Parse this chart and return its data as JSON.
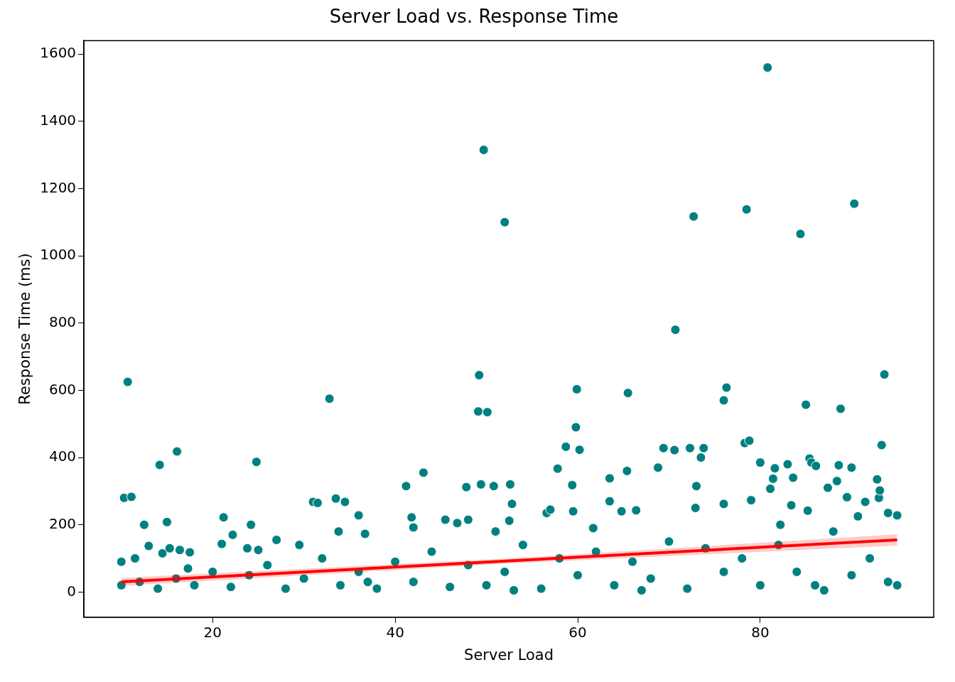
{
  "chart_data": {
    "type": "scatter",
    "title": "Server Load vs. Response Time",
    "xlabel": "Server Load",
    "ylabel": "Response Time (ms)",
    "xlim": [
      5.9,
      99
    ],
    "ylim": [
      -75,
      1640
    ],
    "xticks": [
      20,
      40,
      60,
      80
    ],
    "yticks": [
      0,
      200,
      400,
      600,
      800,
      1000,
      1200,
      1400,
      1600
    ],
    "grid": false,
    "legend": false,
    "marker": "circle",
    "series": [
      {
        "color": "#008080",
        "x": [
          10.3,
          10.7,
          11.1,
          10,
          11.5,
          12.5,
          13,
          14.2,
          14.5,
          15,
          15.3,
          16.1,
          16.4,
          17.5,
          17.3,
          21.2,
          21,
          22.2,
          23.8,
          24.2,
          24.8,
          25,
          27,
          29.5,
          31,
          31.5,
          32.8,
          33.5,
          34.5,
          33.8,
          36,
          36.7,
          41.2,
          41.8,
          42,
          43.1,
          45.5,
          46.8,
          47.8,
          48,
          49.2,
          49.1,
          49.4,
          49.7,
          50.1,
          50.8,
          51,
          52,
          52.6,
          52.8,
          52.5,
          56.6,
          57,
          57.8,
          58.7,
          59.4,
          59.8,
          59.9,
          60.2,
          59.5,
          61.7,
          63.5,
          63.5,
          64.8,
          65.4,
          65.5,
          66.4,
          68.8,
          69.4,
          70.6,
          70.7,
          72.3,
          72.7,
          72.9,
          73,
          73.5,
          73.8,
          76,
          76.3,
          76,
          78.3,
          78.5,
          78.8,
          79,
          80,
          80.8,
          81.1,
          81.4,
          81.6,
          82.2,
          83,
          83.4,
          83.6,
          84.4,
          85,
          85.2,
          85.4,
          85.6,
          86.1,
          87.4,
          88.4,
          88.6,
          88.8,
          89.5,
          90,
          90.3,
          90.7,
          91.5,
          92.8,
          93,
          93.1,
          93.3,
          93.6,
          94,
          95,
          10,
          12,
          14,
          16,
          18,
          20,
          22,
          24,
          26,
          28,
          30,
          32,
          34,
          36,
          38,
          40,
          42,
          44,
          46,
          48,
          50,
          52,
          54,
          56,
          58,
          60,
          62,
          64,
          66,
          68,
          70,
          72,
          74,
          76,
          78,
          80,
          82,
          84,
          86,
          88,
          90,
          92,
          94,
          95,
          37,
          53,
          67,
          87
        ],
        "values": [
          280,
          625,
          283,
          90,
          100,
          200,
          137,
          378,
          115,
          208,
          130,
          418,
          125,
          118,
          70,
          222,
          143,
          170,
          130,
          200,
          387,
          125,
          155,
          140,
          268,
          265,
          575,
          278,
          268,
          180,
          228,
          173,
          315,
          222,
          192,
          355,
          215,
          205,
          312,
          215,
          645,
          537,
          320,
          1315,
          535,
          315,
          180,
          1100,
          320,
          262,
          212,
          235,
          245,
          367,
          432,
          318,
          490,
          603,
          423,
          240,
          190,
          338,
          270,
          240,
          360,
          592,
          243,
          370,
          428,
          422,
          780,
          428,
          1117,
          250,
          315,
          400,
          428,
          570,
          608,
          262,
          443,
          1138,
          450,
          273,
          385,
          1560,
          307,
          337,
          368,
          200,
          380,
          258,
          340,
          1065,
          557,
          242,
          397,
          385,
          375,
          310,
          330,
          377,
          545,
          282,
          370,
          1155,
          225,
          268,
          335,
          280,
          302,
          437,
          647,
          235,
          228,
          20,
          30,
          10,
          40,
          20,
          60,
          15,
          50,
          80,
          10,
          40,
          100,
          20,
          60,
          10,
          90,
          30,
          120,
          15,
          80,
          20,
          60,
          140,
          10,
          100,
          50,
          120,
          20,
          90,
          40,
          150,
          10,
          130,
          60,
          100,
          20,
          140,
          60,
          20,
          180,
          50,
          100,
          30,
          20,
          30,
          5,
          5,
          5
        ]
      },
      {
        "type": "line",
        "color": "#ff0000",
        "x": [
          10,
          52.5,
          95
        ],
        "values": [
          30,
          92.5,
          155
        ],
        "lower": [
          18,
          85,
          138
        ],
        "upper": [
          42,
          100,
          172
        ],
        "marker": "none"
      }
    ]
  }
}
